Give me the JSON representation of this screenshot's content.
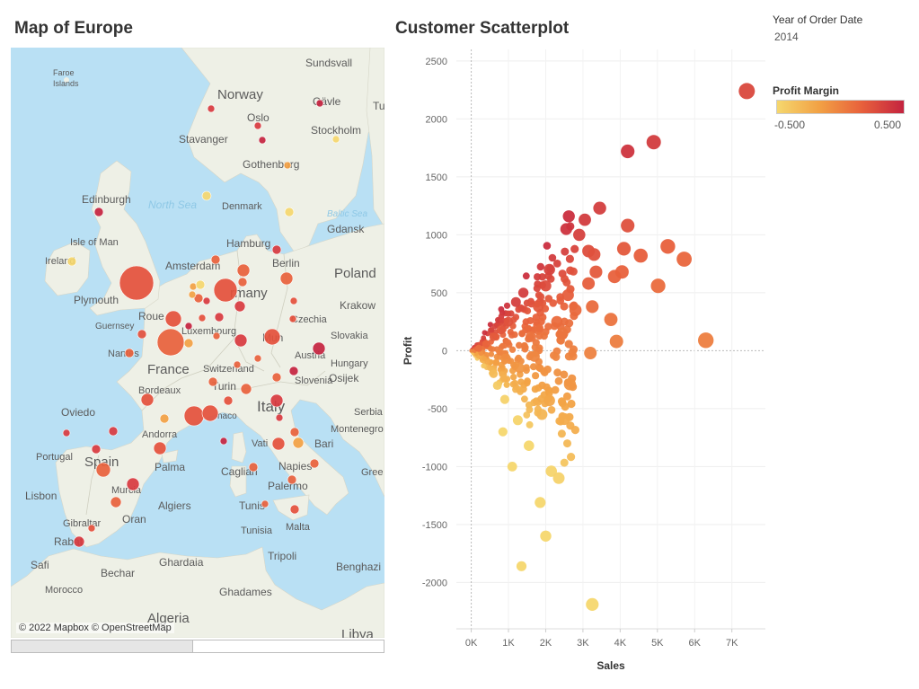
{
  "map": {
    "title": "Map of Europe",
    "attribution": "© 2022 Mapbox © OpenStreetMap",
    "labels": [
      {
        "text": "Faroe"
      },
      {
        "text": "Islands"
      },
      {
        "text": "Sundsvall"
      },
      {
        "text": "Norway"
      },
      {
        "text": "Gävle"
      },
      {
        "text": "Oslo"
      },
      {
        "text": "Stavanger"
      },
      {
        "text": "Stockholm"
      },
      {
        "text": "Tu"
      },
      {
        "text": "Gothenburg"
      },
      {
        "text": "Edinburgh"
      },
      {
        "text": "North Sea"
      },
      {
        "text": "Denmark"
      },
      {
        "text": "Baltic Sea"
      },
      {
        "text": "Gdansk"
      },
      {
        "text": "Isle of Man"
      },
      {
        "text": "Hamburg"
      },
      {
        "text": "Ireland"
      },
      {
        "text": "Berlin"
      },
      {
        "text": "Poland"
      },
      {
        "text": "Amsterdam"
      },
      {
        "text": "Plymouth"
      },
      {
        "text": "rmany"
      },
      {
        "text": "Krakow"
      },
      {
        "text": "Guernsey"
      },
      {
        "text": "Roue"
      },
      {
        "text": "Luxembourg"
      },
      {
        "text": "Czechia"
      },
      {
        "text": "Slovakia"
      },
      {
        "text": "Nantes"
      },
      {
        "text": "Mun"
      },
      {
        "text": "Austria"
      },
      {
        "text": "France"
      },
      {
        "text": "Switzerland"
      },
      {
        "text": "Hungary"
      },
      {
        "text": "Osijek"
      },
      {
        "text": "Bordeaux"
      },
      {
        "text": "Turin"
      },
      {
        "text": "Slovenia"
      },
      {
        "text": "Oviedo"
      },
      {
        "text": "naco"
      },
      {
        "text": "Italy"
      },
      {
        "text": "Serbia"
      },
      {
        "text": "Andorra"
      },
      {
        "text": "Montenegro"
      },
      {
        "text": "Portugal"
      },
      {
        "text": "Spain"
      },
      {
        "text": "Palma"
      },
      {
        "text": "Vati"
      },
      {
        "text": "Bari"
      },
      {
        "text": "Napies"
      },
      {
        "text": "Cagliari"
      },
      {
        "text": "Lisbon"
      },
      {
        "text": "Murcia"
      },
      {
        "text": "Algiers"
      },
      {
        "text": "Tunis"
      },
      {
        "text": "Palermo"
      },
      {
        "text": "Gibraltar"
      },
      {
        "text": "Oran"
      },
      {
        "text": "Tunisia"
      },
      {
        "text": "Malta"
      },
      {
        "text": "Rabat"
      },
      {
        "text": "Tripoli"
      },
      {
        "text": "Safi"
      },
      {
        "text": "Ghardaia"
      },
      {
        "text": "Bechar"
      },
      {
        "text": "Benghazi"
      },
      {
        "text": "Morocco"
      },
      {
        "text": "Ghadames"
      },
      {
        "text": "Algeria"
      },
      {
        "text": "Libya"
      },
      {
        "text": "Gree"
      }
    ],
    "bubble_sizes": [
      {
        "city": "London",
        "size": 5.0
      },
      {
        "city": "Paris",
        "size": 3.6
      },
      {
        "city": "Cologne",
        "size": 3.1
      },
      {
        "city": "Lyon",
        "size": 2.3
      },
      {
        "city": "Marseille",
        "size": 2.2
      },
      {
        "city": "Munich",
        "size": 2.1
      },
      {
        "city": "Rouen",
        "size": 2.0
      },
      {
        "city": "Naples",
        "size": 1.4
      },
      {
        "city": "Madrid",
        "size": 1.7
      }
    ]
  },
  "scatter": {
    "title": "Customer Scatterplot"
  },
  "filter": {
    "title": "Year of Order Date",
    "value": "2014"
  },
  "legend": {
    "title": "Profit Margin",
    "min_label": "-0.500",
    "max_label": "0.500",
    "colors": [
      "#f5d76e",
      "#f2a144",
      "#e8613c",
      "#c4233f"
    ]
  },
  "chart_data": {
    "type": "scatter",
    "title": "Customer Scatterplot",
    "xlabel": "Sales",
    "ylabel": "Profit",
    "xlim": [
      -400,
      7900
    ],
    "ylim": [
      -2400,
      2600
    ],
    "x_ticks": [
      0,
      1000,
      2000,
      3000,
      4000,
      5000,
      6000,
      7000
    ],
    "x_tick_labels": [
      "0K",
      "1K",
      "2K",
      "3K",
      "4K",
      "5K",
      "6K",
      "7K"
    ],
    "y_ticks": [
      -2000,
      -1500,
      -1000,
      -500,
      0,
      500,
      1000,
      1500,
      2000,
      2500
    ],
    "y_tick_labels": [
      "-2000",
      "-1500",
      "-1000",
      "-500",
      "0",
      "500",
      "1000",
      "1500",
      "2000",
      "2500"
    ],
    "grid": true,
    "color_encoding": "Profit Margin",
    "points": [
      {
        "x": 7400,
        "y": 2240
      },
      {
        "x": 4900,
        "y": 1800
      },
      {
        "x": 4200,
        "y": 1720
      },
      {
        "x": 3450,
        "y": 1230
      },
      {
        "x": 2620,
        "y": 1160
      },
      {
        "x": 3050,
        "y": 1130
      },
      {
        "x": 4200,
        "y": 1080
      },
      {
        "x": 2550,
        "y": 1050
      },
      {
        "x": 2900,
        "y": 1000
      },
      {
        "x": 3150,
        "y": 860
      },
      {
        "x": 4100,
        "y": 880
      },
      {
        "x": 4550,
        "y": 820
      },
      {
        "x": 5280,
        "y": 900
      },
      {
        "x": 5720,
        "y": 790
      },
      {
        "x": 3300,
        "y": 830
      },
      {
        "x": 3850,
        "y": 640
      },
      {
        "x": 4050,
        "y": 680
      },
      {
        "x": 3350,
        "y": 680
      },
      {
        "x": 5020,
        "y": 560
      },
      {
        "x": 3150,
        "y": 580
      },
      {
        "x": 2100,
        "y": 700
      },
      {
        "x": 3250,
        "y": 380
      },
      {
        "x": 3750,
        "y": 270
      },
      {
        "x": 3900,
        "y": 80
      },
      {
        "x": 6300,
        "y": 90
      },
      {
        "x": 3200,
        "y": -20
      },
      {
        "x": 2650,
        "y": -290
      },
      {
        "x": 2100,
        "y": -430
      },
      {
        "x": 2500,
        "y": -590
      },
      {
        "x": 1900,
        "y": -550
      },
      {
        "x": 2150,
        "y": -1040
      },
      {
        "x": 2350,
        "y": -1100
      },
      {
        "x": 1850,
        "y": -1310
      },
      {
        "x": 2000,
        "y": -1600
      },
      {
        "x": 1350,
        "y": -1860
      },
      {
        "x": 3250,
        "y": -2190
      },
      {
        "x": 1100,
        "y": -1000
      },
      {
        "x": 1550,
        "y": -820
      },
      {
        "x": 900,
        "y": -420
      },
      {
        "x": 700,
        "y": -300
      },
      {
        "x": 1300,
        "y": -150
      },
      {
        "x": 1600,
        "y": 120
      },
      {
        "x": 2300,
        "y": 250
      },
      {
        "x": 2800,
        "y": 350
      },
      {
        "x": 1400,
        "y": 500
      },
      {
        "x": 1200,
        "y": 420
      },
      {
        "x": 1800,
        "y": 380
      },
      {
        "x": 2000,
        "y": 560
      },
      {
        "x": 1000,
        "y": 250
      },
      {
        "x": 800,
        "y": 180
      },
      {
        "x": 600,
        "y": 120
      },
      {
        "x": 400,
        "y": 60
      },
      {
        "x": 200,
        "y": 20
      },
      {
        "x": 2600,
        "y": 480
      },
      {
        "x": 2450,
        "y": 150
      },
      {
        "x": 1700,
        "y": -50
      },
      {
        "x": 1250,
        "y": -600
      },
      {
        "x": 850,
        "y": -700
      },
      {
        "x": 600,
        "y": -200
      }
    ]
  }
}
